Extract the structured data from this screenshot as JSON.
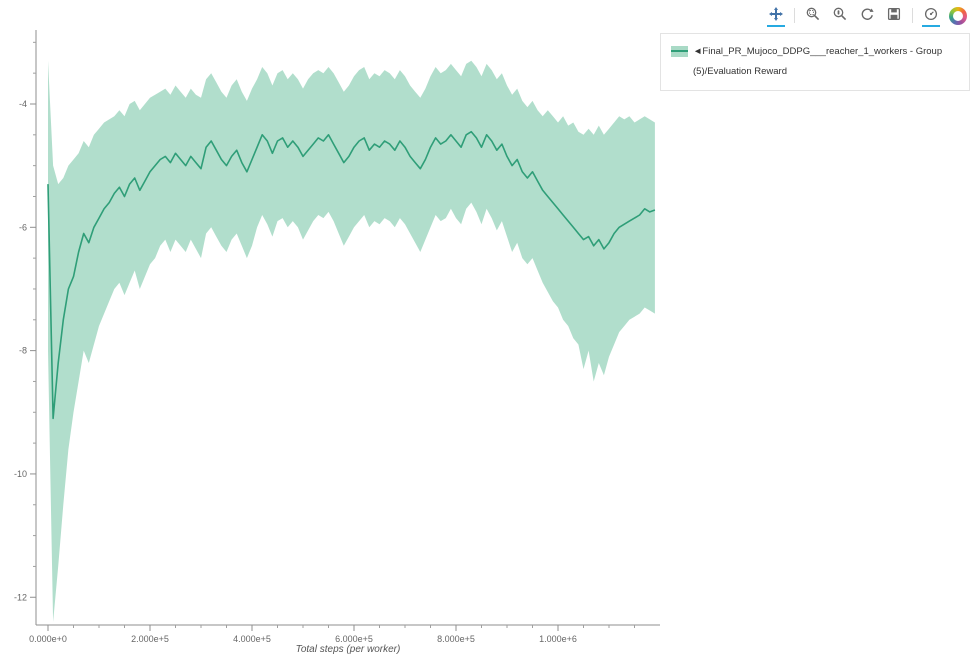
{
  "toolbar": {
    "icons": [
      "pan-icon",
      "box-zoom-icon",
      "wheel-zoom-icon",
      "reset-icon",
      "save-icon",
      "hover-icon",
      "bokeh-logo"
    ],
    "active_tools": [
      "pan",
      "hover"
    ],
    "active_underline_color": "#26aae1"
  },
  "legend": {
    "marker": "◄",
    "label": "Final_PR_Mujoco_DDPG___reacher_1_workers - Group (5)/Evaluation Reward"
  },
  "chart_data": {
    "type": "line",
    "title": "",
    "xlabel": "Total steps (per worker)",
    "ylabel": "",
    "grid": false,
    "legend_position": "top-right-outside",
    "xlim": [
      -23500,
      1200000
    ],
    "ylim": [
      -12.45,
      -2.8
    ],
    "x_ticks": {
      "values": [
        0,
        200000,
        400000,
        600000,
        800000,
        1000000
      ],
      "labels": [
        "0.000e+0",
        "2.000e+5",
        "4.000e+5",
        "6.000e+5",
        "8.000e+5",
        "1.000e+6"
      ]
    },
    "y_ticks": {
      "values": [
        -4,
        -6,
        -8,
        -10,
        -12
      ],
      "labels": [
        "-4",
        "-6",
        "-8",
        "-10",
        "-12"
      ]
    },
    "x0": 0,
    "dx": 10000,
    "series": [
      {
        "name": "Final_PR_Mujoco_DDPG___reacher_1_workers - Group (5)/Evaluation Reward",
        "color": "#2f9e78",
        "band_color": "#a9dac6",
        "mean": [
          -5.3,
          -9.1,
          -8.2,
          -7.5,
          -7.0,
          -6.8,
          -6.4,
          -6.1,
          -6.25,
          -6.0,
          -5.85,
          -5.7,
          -5.6,
          -5.45,
          -5.35,
          -5.5,
          -5.3,
          -5.2,
          -5.4,
          -5.25,
          -5.1,
          -5.0,
          -4.9,
          -4.85,
          -4.95,
          -4.8,
          -4.9,
          -5.0,
          -4.85,
          -4.95,
          -5.05,
          -4.7,
          -4.6,
          -4.75,
          -4.9,
          -5.0,
          -4.85,
          -4.75,
          -4.95,
          -5.1,
          -4.9,
          -4.7,
          -4.5,
          -4.6,
          -4.8,
          -4.6,
          -4.55,
          -4.7,
          -4.6,
          -4.7,
          -4.85,
          -4.75,
          -4.65,
          -4.55,
          -4.6,
          -4.5,
          -4.65,
          -4.8,
          -4.95,
          -4.85,
          -4.7,
          -4.6,
          -4.55,
          -4.75,
          -4.65,
          -4.7,
          -4.6,
          -4.65,
          -4.75,
          -4.6,
          -4.7,
          -4.85,
          -4.95,
          -5.05,
          -4.9,
          -4.7,
          -4.55,
          -4.65,
          -4.6,
          -4.5,
          -4.6,
          -4.7,
          -4.5,
          -4.45,
          -4.55,
          -4.7,
          -4.5,
          -4.6,
          -4.75,
          -4.65,
          -4.85,
          -5.0,
          -4.9,
          -5.1,
          -5.2,
          -5.1,
          -5.25,
          -5.4,
          -5.5,
          -5.6,
          -5.7,
          -5.8,
          -5.9,
          -6.0,
          -6.1,
          -6.2,
          -6.15,
          -6.3,
          -6.2,
          -6.35,
          -6.25,
          -6.1,
          -6.0,
          -5.95,
          -5.9,
          -5.85,
          -5.8,
          -5.7,
          -5.75,
          -5.72
        ],
        "band_upper": [
          -3.3,
          -5.0,
          -5.3,
          -5.2,
          -5.0,
          -4.9,
          -4.8,
          -4.6,
          -4.7,
          -4.5,
          -4.4,
          -4.3,
          -4.25,
          -4.2,
          -4.1,
          -4.2,
          -4.0,
          -3.95,
          -4.1,
          -4.0,
          -3.9,
          -3.85,
          -3.8,
          -3.75,
          -3.85,
          -3.7,
          -3.8,
          -3.9,
          -3.75,
          -3.85,
          -3.9,
          -3.6,
          -3.5,
          -3.65,
          -3.8,
          -3.9,
          -3.7,
          -3.6,
          -3.8,
          -3.95,
          -3.75,
          -3.6,
          -3.4,
          -3.5,
          -3.7,
          -3.5,
          -3.45,
          -3.6,
          -3.5,
          -3.6,
          -3.75,
          -3.6,
          -3.5,
          -3.45,
          -3.5,
          -3.4,
          -3.5,
          -3.65,
          -3.8,
          -3.7,
          -3.55,
          -3.45,
          -3.4,
          -3.6,
          -3.5,
          -3.55,
          -3.45,
          -3.5,
          -3.6,
          -3.45,
          -3.55,
          -3.7,
          -3.8,
          -3.9,
          -3.75,
          -3.55,
          -3.4,
          -3.5,
          -3.45,
          -3.35,
          -3.45,
          -3.55,
          -3.35,
          -3.3,
          -3.4,
          -3.55,
          -3.35,
          -3.45,
          -3.6,
          -3.5,
          -3.7,
          -3.85,
          -3.75,
          -3.95,
          -4.05,
          -3.95,
          -4.1,
          -4.2,
          -4.1,
          -4.2,
          -4.3,
          -4.2,
          -4.35,
          -4.3,
          -4.45,
          -4.5,
          -4.4,
          -4.5,
          -4.35,
          -4.5,
          -4.4,
          -4.3,
          -4.2,
          -4.25,
          -4.2,
          -4.3,
          -4.25,
          -4.2,
          -4.25,
          -4.3
        ],
        "band_lower": [
          -8.0,
          -12.4,
          -11.5,
          -10.5,
          -9.6,
          -9.0,
          -8.5,
          -8.0,
          -8.2,
          -7.9,
          -7.6,
          -7.4,
          -7.2,
          -7.0,
          -6.9,
          -7.1,
          -6.9,
          -6.7,
          -7.0,
          -6.8,
          -6.6,
          -6.5,
          -6.3,
          -6.2,
          -6.4,
          -6.2,
          -6.3,
          -6.4,
          -6.2,
          -6.35,
          -6.5,
          -6.1,
          -6.0,
          -6.15,
          -6.3,
          -6.4,
          -6.2,
          -6.1,
          -6.3,
          -6.5,
          -6.3,
          -6.0,
          -5.8,
          -5.95,
          -6.15,
          -5.9,
          -5.85,
          -6.0,
          -5.9,
          -6.0,
          -6.2,
          -6.05,
          -5.9,
          -5.8,
          -5.85,
          -5.75,
          -5.9,
          -6.1,
          -6.3,
          -6.15,
          -6.0,
          -5.9,
          -5.8,
          -6.0,
          -5.9,
          -5.95,
          -5.85,
          -5.9,
          -6.0,
          -5.85,
          -5.95,
          -6.1,
          -6.25,
          -6.4,
          -6.2,
          -6.0,
          -5.8,
          -5.9,
          -5.85,
          -5.7,
          -5.85,
          -5.95,
          -5.7,
          -5.6,
          -5.75,
          -5.95,
          -5.7,
          -5.85,
          -6.05,
          -5.9,
          -6.15,
          -6.4,
          -6.25,
          -6.5,
          -6.6,
          -6.5,
          -6.7,
          -6.9,
          -7.05,
          -7.2,
          -7.3,
          -7.5,
          -7.6,
          -7.8,
          -7.9,
          -8.3,
          -8.0,
          -8.5,
          -8.2,
          -8.4,
          -8.1,
          -7.9,
          -7.7,
          -7.6,
          -7.5,
          -7.45,
          -7.4,
          -7.3,
          -7.35,
          -7.4
        ]
      }
    ]
  }
}
